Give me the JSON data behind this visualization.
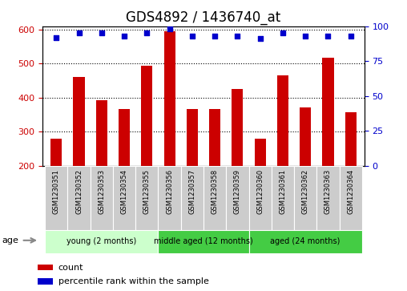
{
  "title": "GDS4892 / 1436740_at",
  "samples": [
    "GSM1230351",
    "GSM1230352",
    "GSM1230353",
    "GSM1230354",
    "GSM1230355",
    "GSM1230356",
    "GSM1230357",
    "GSM1230358",
    "GSM1230359",
    "GSM1230360",
    "GSM1230361",
    "GSM1230362",
    "GSM1230363",
    "GSM1230364"
  ],
  "counts": [
    280,
    460,
    392,
    366,
    495,
    595,
    366,
    366,
    425,
    280,
    465,
    372,
    518,
    358
  ],
  "percentile_ranks": [
    92,
    95,
    95,
    93,
    95,
    98,
    93,
    93,
    93,
    91,
    95,
    93,
    93,
    93
  ],
  "ylim_left": [
    200,
    610
  ],
  "ylim_right": [
    0,
    100
  ],
  "yticks_left": [
    200,
    300,
    400,
    500,
    600
  ],
  "yticks_right": [
    0,
    25,
    50,
    75,
    100
  ],
  "bar_color": "#cc0000",
  "dot_color": "#0000cc",
  "bar_width": 0.5,
  "groups": [
    {
      "label": "young (2 months)",
      "start": 0,
      "end": 4,
      "color": "#ccffcc"
    },
    {
      "label": "middle aged (12 months)",
      "start": 5,
      "end": 8,
      "color": "#44cc44"
    },
    {
      "label": "aged (24 months)",
      "start": 9,
      "end": 13,
      "color": "#44cc44"
    }
  ],
  "age_label": "age",
  "legend_count_label": "count",
  "legend_percentile_label": "percentile rank within the sample",
  "grid_color": "#000000",
  "background_color": "#ffffff",
  "tick_label_color_left": "#cc0000",
  "tick_label_color_right": "#0000cc",
  "sample_box_color": "#cccccc",
  "title_fontsize": 12,
  "tick_fontsize": 8,
  "sample_fontsize": 6,
  "group_fontsize": 8
}
